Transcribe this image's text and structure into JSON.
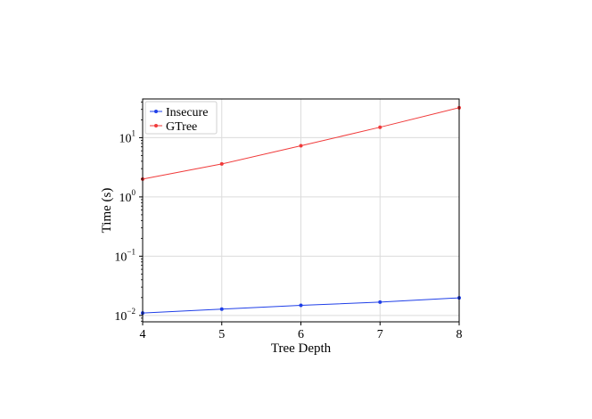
{
  "chart_data": {
    "type": "line",
    "title": "",
    "xlabel": "Tree Depth",
    "ylabel": "Time (s)",
    "x": [
      4,
      5,
      6,
      7,
      8
    ],
    "xlim": [
      4,
      8
    ],
    "ylim": [
      0.0078,
      45
    ],
    "yscale": "log",
    "x_ticks": [
      "4",
      "5",
      "6",
      "7",
      "8"
    ],
    "y_ticks": [
      {
        "value": 0.01,
        "base": "10",
        "exp": "−2"
      },
      {
        "value": 0.1,
        "base": "10",
        "exp": "−1"
      },
      {
        "value": 1,
        "base": "10",
        "exp": "0"
      },
      {
        "value": 10,
        "base": "10",
        "exp": "1"
      }
    ],
    "grid": true,
    "legend": "top-left",
    "series": [
      {
        "name": "Insecure",
        "color": "#1f3fe8",
        "values": [
          0.011,
          0.0128,
          0.0148,
          0.0168,
          0.0198
        ]
      },
      {
        "name": "GTree",
        "color": "#f03a3a",
        "values": [
          2.0,
          3.6,
          7.3,
          15.0,
          32.0
        ]
      }
    ]
  }
}
